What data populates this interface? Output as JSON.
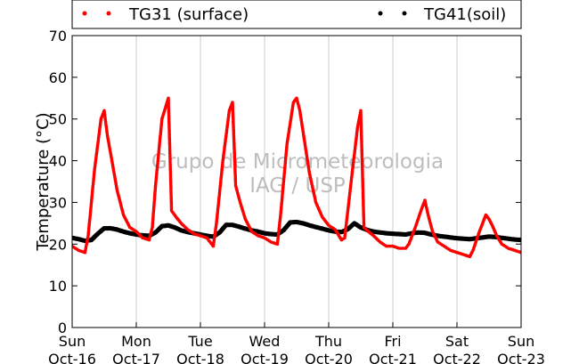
{
  "chart_data": {
    "type": "scatter",
    "title": "",
    "xlabel": "",
    "ylabel": "Temperature (°C)",
    "ylim": [
      0,
      70
    ],
    "yticks": [
      0,
      10,
      20,
      30,
      40,
      50,
      60,
      70
    ],
    "xlim": [
      0,
      7
    ],
    "xtick_labels": [
      [
        "Sun",
        "Oct-16"
      ],
      [
        "Mon",
        "Oct-17"
      ],
      [
        "Tue",
        "Oct-18"
      ],
      [
        "Wed",
        "Oct-19"
      ],
      [
        "Thu",
        "Oct-20"
      ],
      [
        "Fri",
        "Oct-21"
      ],
      [
        "Sat",
        "Oct-22"
      ],
      [
        "Sun",
        "Oct-23"
      ]
    ],
    "grid": "vertical",
    "legend_placement": "top",
    "watermark": [
      "Grupo de Micrometeorologia",
      "IAG / USP"
    ],
    "series": [
      {
        "name": "TG31 (surface)",
        "color": "#ff0000",
        "x": [
          0.0,
          0.1,
          0.2,
          0.25,
          0.35,
          0.45,
          0.5,
          0.55,
          0.62,
          0.7,
          0.8,
          0.9,
          1.0,
          1.1,
          1.2,
          1.25,
          1.3,
          1.4,
          1.5,
          1.55,
          1.62,
          1.7,
          1.8,
          1.9,
          2.0,
          2.1,
          2.2,
          2.25,
          2.35,
          2.45,
          2.5,
          2.55,
          2.62,
          2.7,
          2.8,
          2.9,
          3.0,
          3.1,
          3.2,
          3.25,
          3.35,
          3.45,
          3.5,
          3.55,
          3.62,
          3.7,
          3.8,
          3.9,
          4.0,
          4.1,
          4.2,
          4.25,
          4.35,
          4.45,
          4.5,
          4.55,
          4.62,
          4.7,
          4.8,
          4.9,
          5.0,
          5.1,
          5.2,
          5.25,
          5.35,
          5.45,
          5.5,
          5.55,
          5.62,
          5.7,
          5.8,
          5.9,
          6.0,
          6.1,
          6.2,
          6.25,
          6.35,
          6.45,
          6.5,
          6.55,
          6.62,
          6.7,
          6.8,
          6.9,
          7.0
        ],
        "values": [
          19.5,
          18.5,
          18.0,
          22.0,
          38.0,
          50.0,
          52.0,
          46.0,
          40.0,
          33.0,
          27.0,
          24.0,
          23.0,
          21.5,
          21.0,
          24.0,
          34.0,
          50.0,
          55.0,
          28.0,
          26.5,
          25.0,
          23.5,
          22.5,
          22.0,
          21.5,
          19.5,
          25.0,
          40.0,
          52.0,
          54.0,
          34.0,
          30.0,
          26.0,
          23.0,
          22.0,
          21.5,
          20.5,
          20.0,
          27.0,
          44.0,
          54.0,
          55.0,
          52.0,
          45.0,
          37.0,
          30.0,
          26.5,
          24.5,
          23.5,
          21.0,
          21.5,
          35.0,
          48.0,
          52.0,
          24.0,
          23.0,
          22.0,
          20.5,
          19.5,
          19.5,
          19.0,
          19.0,
          20.0,
          24.0,
          28.5,
          30.5,
          27.0,
          23.0,
          20.5,
          19.5,
          18.5,
          18.0,
          17.5,
          17.0,
          18.5,
          23.0,
          27.0,
          26.0,
          24.5,
          22.0,
          20.0,
          19.0,
          18.5,
          18.0
        ]
      },
      {
        "name": "TG41(soil)",
        "color": "#000000",
        "x": [
          0.0,
          0.1,
          0.2,
          0.3,
          0.4,
          0.5,
          0.6,
          0.7,
          0.8,
          0.9,
          1.0,
          1.1,
          1.2,
          1.3,
          1.4,
          1.5,
          1.6,
          1.7,
          1.8,
          1.9,
          2.0,
          2.1,
          2.2,
          2.3,
          2.4,
          2.5,
          2.6,
          2.7,
          2.8,
          2.9,
          3.0,
          3.1,
          3.2,
          3.3,
          3.4,
          3.5,
          3.6,
          3.7,
          3.8,
          3.9,
          4.0,
          4.1,
          4.2,
          4.3,
          4.4,
          4.5,
          4.6,
          4.7,
          4.8,
          4.9,
          5.0,
          5.1,
          5.2,
          5.3,
          5.4,
          5.5,
          5.6,
          5.7,
          5.8,
          5.9,
          6.0,
          6.1,
          6.2,
          6.3,
          6.4,
          6.5,
          6.6,
          6.7,
          6.8,
          6.9,
          7.0
        ],
        "values": [
          21.5,
          21.2,
          20.8,
          21.0,
          22.5,
          23.8,
          23.8,
          23.5,
          23.0,
          22.6,
          22.3,
          22.1,
          22.0,
          22.8,
          24.3,
          24.5,
          24.0,
          23.3,
          22.9,
          22.6,
          22.3,
          22.0,
          21.8,
          22.8,
          24.6,
          24.6,
          24.2,
          23.7,
          23.3,
          23.0,
          22.6,
          22.4,
          22.3,
          23.4,
          25.2,
          25.3,
          25.0,
          24.5,
          24.1,
          23.7,
          23.3,
          23.0,
          22.9,
          23.6,
          25.0,
          24.0,
          23.4,
          23.0,
          22.8,
          22.6,
          22.5,
          22.4,
          22.3,
          22.6,
          22.8,
          22.7,
          22.3,
          22.0,
          21.8,
          21.6,
          21.4,
          21.3,
          21.2,
          21.4,
          21.6,
          21.8,
          21.7,
          21.5,
          21.3,
          21.1,
          21.0
        ]
      }
    ]
  }
}
